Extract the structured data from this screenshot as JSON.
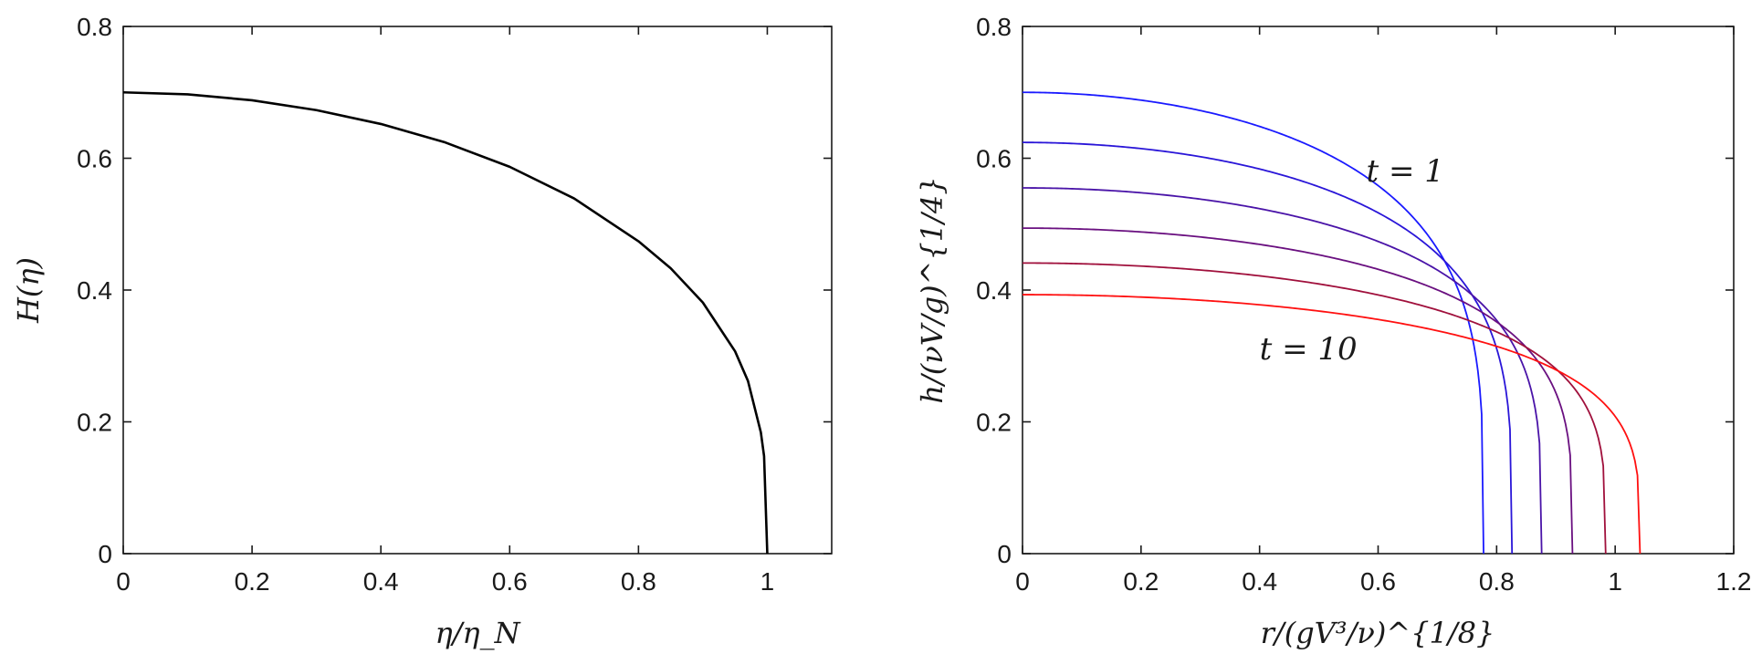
{
  "chart_data": [
    {
      "type": "line",
      "xlabel": "η/η_N",
      "ylabel": "H(η)",
      "xlim": [
        0,
        1.1
      ],
      "ylim": [
        0,
        0.8
      ],
      "xticks": [
        "0",
        "0.2",
        "0.4",
        "0.6",
        "0.8",
        "1"
      ],
      "yticks": [
        "0",
        "0.2",
        "0.4",
        "0.6",
        "0.8"
      ],
      "grid": false,
      "series": [
        {
          "color": "#000000",
          "x": [
            0,
            0.1,
            0.2,
            0.3,
            0.4,
            0.5,
            0.6,
            0.7,
            0.8,
            0.85,
            0.9,
            0.95,
            0.97,
            0.99,
            0.995,
            1.0
          ],
          "y": [
            0.7,
            0.697,
            0.688,
            0.673,
            0.652,
            0.624,
            0.587,
            0.539,
            0.474,
            0.433,
            0.381,
            0.307,
            0.262,
            0.184,
            0.148,
            0.0
          ]
        }
      ]
    },
    {
      "type": "line",
      "xlabel": "r/(gV³/ν)^{1/8}",
      "ylabel": "h/(νV/g)^{1/4}",
      "xlim": [
        0,
        1.2
      ],
      "ylim": [
        0,
        0.8
      ],
      "xticks": [
        "0",
        "0.2",
        "0.4",
        "0.6",
        "0.8",
        "1",
        "1.2"
      ],
      "yticks": [
        "0",
        "0.2",
        "0.4",
        "0.6",
        "0.8"
      ],
      "grid": false,
      "annotations": [
        {
          "text": "t = 1",
          "x": 0.58,
          "y": 0.565
        },
        {
          "text": "t = 10",
          "x": 0.4,
          "y": 0.295
        }
      ],
      "series": [
        {
          "color": "#1a1aff",
          "x_front": 0.778,
          "h0": 0.7
        },
        {
          "color": "#2a16d8",
          "x_front": 0.826,
          "h0": 0.624
        },
        {
          "color": "#4a14a8",
          "x_front": 0.876,
          "h0": 0.555
        },
        {
          "color": "#6a1080",
          "x_front": 0.928,
          "h0": 0.494
        },
        {
          "color": "#a0103c",
          "x_front": 0.984,
          "h0": 0.441
        },
        {
          "color": "#ff1010",
          "x_front": 1.042,
          "h0": 0.393
        }
      ]
    }
  ]
}
